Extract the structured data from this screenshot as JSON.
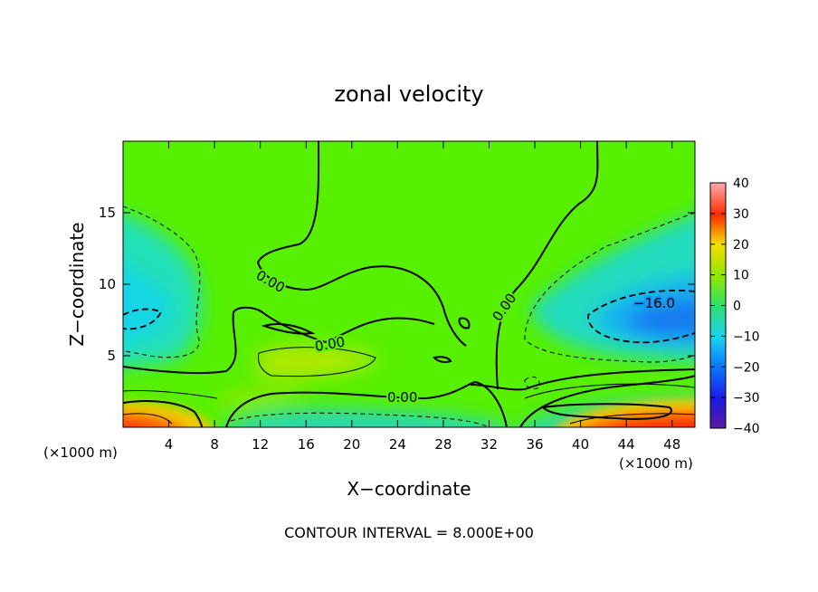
{
  "chart_data": {
    "type": "heatmap",
    "title": "zonal velocity",
    "xlabel": "X−coordinate",
    "ylabel": "Z−coordinate",
    "x_unit_left": "(×1000 m)",
    "x_unit_right": "(×1000 m)",
    "footer": "CONTOUR INTERVAL = 8.000E+00",
    "xlim": [
      0,
      50
    ],
    "ylim": [
      0,
      20
    ],
    "xticks": [
      4,
      8,
      12,
      16,
      20,
      24,
      28,
      32,
      36,
      40,
      44,
      48
    ],
    "yticks": [
      5,
      10,
      15
    ],
    "colorbar": {
      "range": [
        -40,
        40
      ],
      "ticks": [
        40,
        30,
        20,
        10,
        0,
        -10,
        -20,
        -30,
        -40
      ],
      "tick_labels": [
        "40",
        "30",
        "20",
        "10",
        "0",
        "−10",
        "−20",
        "−30",
        "−40"
      ]
    },
    "contour_labels": [
      "0.00",
      "0.00",
      "0.00",
      "0.00",
      "−16.0"
    ]
  }
}
